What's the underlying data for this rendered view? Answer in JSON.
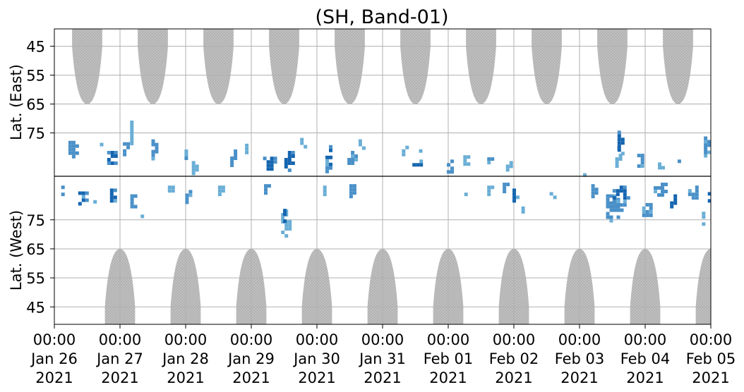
{
  "chart_data": {
    "type": "heatmap",
    "title": "(SH, Band-01)",
    "ylabel_top": "Lat. (East)",
    "ylabel_bottom": "Lat. (West)",
    "x_range": [
      "2021-01-26 00:00",
      "2021-02-05 00:00"
    ],
    "x_ticks": [
      {
        "time": "00:00",
        "date": "Jan 26",
        "year": "2021"
      },
      {
        "time": "00:00",
        "date": "Jan 27",
        "year": "2021"
      },
      {
        "time": "00:00",
        "date": "Jan 28",
        "year": "2021"
      },
      {
        "time": "00:00",
        "date": "Jan 29",
        "year": "2021"
      },
      {
        "time": "00:00",
        "date": "Jan 30",
        "year": "2021"
      },
      {
        "time": "00:00",
        "date": "Jan 31",
        "year": "2021"
      },
      {
        "time": "00:00",
        "date": "Feb 01",
        "year": "2021"
      },
      {
        "time": "00:00",
        "date": "Feb 02",
        "year": "2021"
      },
      {
        "time": "00:00",
        "date": "Feb 03",
        "year": "2021"
      },
      {
        "time": "00:00",
        "date": "Feb 04",
        "year": "2021"
      },
      {
        "time": "00:00",
        "date": "Feb 05",
        "year": "2021"
      }
    ],
    "y_ticks_top": [
      "45",
      "55",
      "65",
      "75"
    ],
    "y_ticks_bottom": [
      "75",
      "65",
      "55",
      "45"
    ],
    "y_range_top": [
      39,
      90
    ],
    "y_range_bottom": [
      90,
      39
    ],
    "divider_latitude": 90,
    "grid": true,
    "daylight_mask": {
      "color": "#b5b5b5",
      "east_centers_day": [
        0.5,
        1.5,
        2.5,
        3.5,
        4.5,
        5.5,
        6.5,
        7.5,
        8.5,
        9.5
      ],
      "east_lowest_lat": 65,
      "west_centers_day": [
        1.0,
        2.0,
        3.0,
        4.0,
        5.0,
        6.0,
        7.0,
        8.0,
        9.0,
        10.0
      ],
      "west_lowest_lat": 65
    },
    "colors": {
      "high": "#1565b0",
      "mid": "#4a90c8",
      "low": "#6aaed6"
    },
    "series": [
      {
        "side": "east",
        "blobs": [
          {
            "day": 0.25,
            "lat": 80,
            "dday": 0.18,
            "dlat": 7,
            "level": "mid"
          },
          {
            "day": 0.7,
            "lat": 78,
            "dday": 0.12,
            "dlat": 4,
            "level": "low"
          },
          {
            "day": 0.85,
            "lat": 83,
            "dday": 0.2,
            "dlat": 6,
            "level": "high"
          },
          {
            "day": 1.05,
            "lat": 80,
            "dday": 0.12,
            "dlat": 6,
            "level": "mid"
          },
          {
            "day": 1.15,
            "lat": 74,
            "dday": 0.1,
            "dlat": 9,
            "level": "low"
          },
          {
            "day": 1.5,
            "lat": 80,
            "dday": 0.15,
            "dlat": 8,
            "level": "mid"
          },
          {
            "day": 1.95,
            "lat": 82,
            "dday": 0.15,
            "dlat": 5,
            "level": "mid"
          },
          {
            "day": 2.1,
            "lat": 86,
            "dday": 0.12,
            "dlat": 5,
            "level": "low"
          },
          {
            "day": 2.7,
            "lat": 83,
            "dday": 0.15,
            "dlat": 7,
            "level": "mid"
          },
          {
            "day": 2.9,
            "lat": 80,
            "dday": 0.1,
            "dlat": 5,
            "level": "low"
          },
          {
            "day": 3.25,
            "lat": 85,
            "dday": 0.25,
            "dlat": 6,
            "level": "high"
          },
          {
            "day": 3.55,
            "lat": 84,
            "dday": 0.2,
            "dlat": 8,
            "level": "high"
          },
          {
            "day": 3.75,
            "lat": 78,
            "dday": 0.12,
            "dlat": 5,
            "level": "low"
          },
          {
            "day": 4.15,
            "lat": 83,
            "dday": 0.15,
            "dlat": 10,
            "level": "high"
          },
          {
            "day": 4.5,
            "lat": 83,
            "dday": 0.18,
            "dlat": 6,
            "level": "mid"
          },
          {
            "day": 4.65,
            "lat": 78,
            "dday": 0.14,
            "dlat": 4,
            "level": "low"
          },
          {
            "day": 5.3,
            "lat": 80,
            "dday": 0.12,
            "dlat": 6,
            "level": "low"
          },
          {
            "day": 5.5,
            "lat": 86,
            "dday": 0.2,
            "dlat": 6,
            "level": "high"
          },
          {
            "day": 5.55,
            "lat": 79,
            "dday": 0.1,
            "dlat": 4,
            "level": "low"
          },
          {
            "day": 6.0,
            "lat": 86,
            "dday": 0.15,
            "dlat": 6,
            "level": "mid"
          },
          {
            "day": 6.25,
            "lat": 84,
            "dday": 0.15,
            "dlat": 5,
            "level": "low"
          },
          {
            "day": 6.6,
            "lat": 84,
            "dday": 0.12,
            "dlat": 6,
            "level": "mid"
          },
          {
            "day": 6.9,
            "lat": 86,
            "dday": 0.15,
            "dlat": 5,
            "level": "low"
          },
          {
            "day": 8.05,
            "lat": 88,
            "dday": 0.1,
            "dlat": 3,
            "level": "low"
          },
          {
            "day": 8.55,
            "lat": 84,
            "dday": 0.12,
            "dlat": 6,
            "level": "low"
          },
          {
            "day": 8.55,
            "lat": 79,
            "dday": 0.06,
            "dlat": 6,
            "level": "low"
          },
          {
            "day": 8.6,
            "lat": 78,
            "dday": 0.15,
            "dlat": 10,
            "level": "high"
          },
          {
            "day": 8.9,
            "lat": 84,
            "dday": 0.15,
            "dlat": 6,
            "level": "mid"
          },
          {
            "day": 9.2,
            "lat": 86,
            "dday": 0.12,
            "dlat": 4,
            "level": "low"
          },
          {
            "day": 9.5,
            "lat": 85,
            "dday": 0.12,
            "dlat": 4,
            "level": "mid"
          },
          {
            "day": 9.9,
            "lat": 79,
            "dday": 0.12,
            "dlat": 8,
            "level": "mid"
          }
        ]
      },
      {
        "side": "west",
        "blobs": [
          {
            "day": 0.1,
            "lat": 86,
            "dday": 0.1,
            "dlat": 4,
            "level": "mid"
          },
          {
            "day": 0.4,
            "lat": 83,
            "dday": 0.18,
            "dlat": 6,
            "level": "high"
          },
          {
            "day": 0.6,
            "lat": 80,
            "dday": 0.12,
            "dlat": 6,
            "level": "low"
          },
          {
            "day": 0.85,
            "lat": 84,
            "dday": 0.22,
            "dlat": 6,
            "level": "high"
          },
          {
            "day": 1.15,
            "lat": 82,
            "dday": 0.2,
            "dlat": 6,
            "level": "mid"
          },
          {
            "day": 1.3,
            "lat": 76,
            "dday": 0.08,
            "dlat": 4,
            "level": "low"
          },
          {
            "day": 1.75,
            "lat": 86,
            "dday": 0.15,
            "dlat": 4,
            "level": "low"
          },
          {
            "day": 2.0,
            "lat": 84,
            "dday": 0.12,
            "dlat": 5,
            "level": "mid"
          },
          {
            "day": 2.5,
            "lat": 86,
            "dday": 0.12,
            "dlat": 4,
            "level": "low"
          },
          {
            "day": 3.2,
            "lat": 86,
            "dday": 0.12,
            "dlat": 5,
            "level": "mid"
          },
          {
            "day": 3.5,
            "lat": 75,
            "dday": 0.2,
            "dlat": 12,
            "level": "low"
          },
          {
            "day": 3.48,
            "lat": 77,
            "dday": 0.1,
            "dlat": 6,
            "level": "high"
          },
          {
            "day": 4.1,
            "lat": 86,
            "dday": 0.12,
            "dlat": 4,
            "level": "low"
          },
          {
            "day": 4.5,
            "lat": 86,
            "dday": 0.12,
            "dlat": 5,
            "level": "mid"
          },
          {
            "day": 6.25,
            "lat": 86,
            "dday": 0.12,
            "dlat": 4,
            "level": "low"
          },
          {
            "day": 6.6,
            "lat": 86,
            "dday": 0.12,
            "dlat": 4,
            "level": "low"
          },
          {
            "day": 6.85,
            "lat": 86,
            "dday": 0.15,
            "dlat": 6,
            "level": "mid"
          },
          {
            "day": 7.0,
            "lat": 84,
            "dday": 0.15,
            "dlat": 6,
            "level": "high"
          },
          {
            "day": 7.1,
            "lat": 80,
            "dday": 0.08,
            "dlat": 4,
            "level": "low"
          },
          {
            "day": 7.55,
            "lat": 84,
            "dday": 0.12,
            "dlat": 6,
            "level": "low"
          },
          {
            "day": 8.2,
            "lat": 86,
            "dday": 0.15,
            "dlat": 5,
            "level": "mid"
          },
          {
            "day": 8.5,
            "lat": 80,
            "dday": 0.3,
            "dlat": 10,
            "level": "mid"
          },
          {
            "day": 8.6,
            "lat": 84,
            "dday": 0.3,
            "dlat": 8,
            "level": "high"
          },
          {
            "day": 9.0,
            "lat": 79,
            "dday": 0.2,
            "dlat": 6,
            "level": "mid"
          },
          {
            "day": 9.2,
            "lat": 86,
            "dday": 0.25,
            "dlat": 6,
            "level": "mid"
          },
          {
            "day": 9.4,
            "lat": 82,
            "dday": 0.15,
            "dlat": 6,
            "level": "high"
          },
          {
            "day": 9.7,
            "lat": 85,
            "dday": 0.2,
            "dlat": 6,
            "level": "mid"
          },
          {
            "day": 9.85,
            "lat": 76,
            "dday": 0.08,
            "dlat": 6,
            "level": "low"
          },
          {
            "day": 9.95,
            "lat": 84,
            "dday": 0.1,
            "dlat": 6,
            "level": "high"
          }
        ]
      }
    ]
  }
}
